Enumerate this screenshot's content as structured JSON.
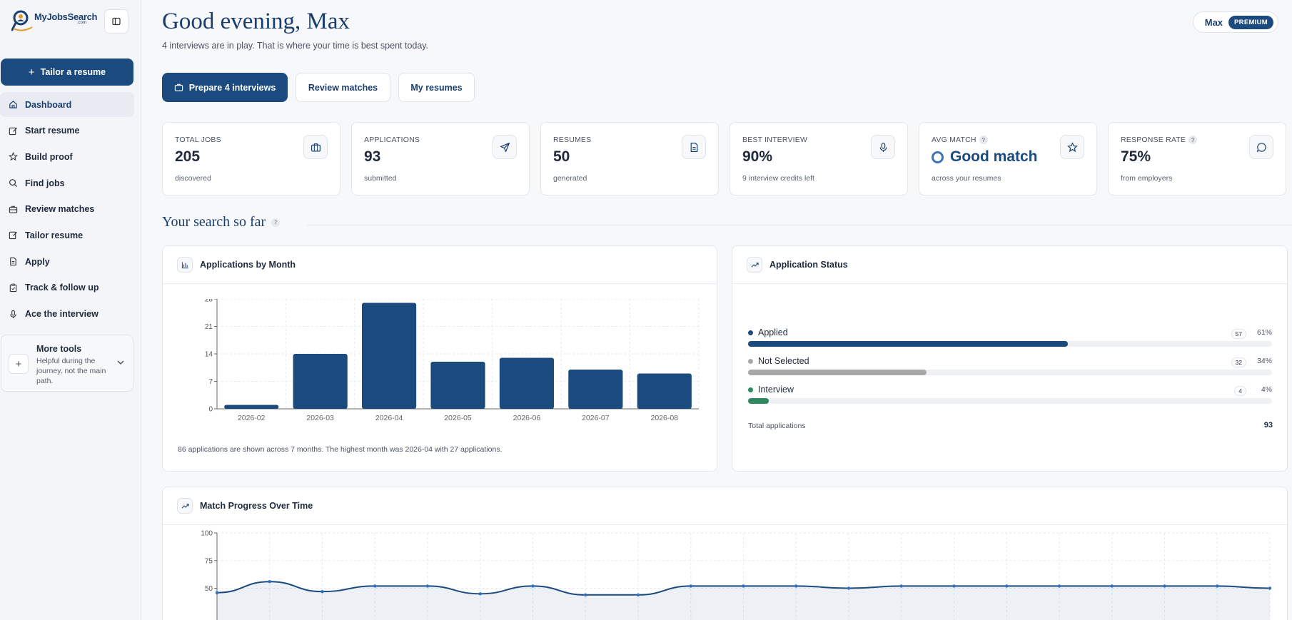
{
  "brand": {
    "name": "MyJobsSearch",
    "suffix": ".com"
  },
  "sidebar": {
    "tailor_button": "Tailor a resume",
    "items": [
      {
        "label": "Dashboard",
        "icon": "home-icon"
      },
      {
        "label": "Start resume",
        "icon": "edit-icon"
      },
      {
        "label": "Build proof",
        "icon": "star-icon"
      },
      {
        "label": "Find jobs",
        "icon": "search-icon"
      },
      {
        "label": "Review matches",
        "icon": "briefcase-icon"
      },
      {
        "label": "Tailor resume",
        "icon": "edit-icon"
      },
      {
        "label": "Apply",
        "icon": "document-icon"
      },
      {
        "label": "Track & follow up",
        "icon": "clipboard-icon"
      },
      {
        "label": "Ace the interview",
        "icon": "microphone-icon"
      }
    ],
    "more_tools": {
      "title": "More tools",
      "description": "Helpful during the journey, not the main path."
    }
  },
  "header": {
    "greeting": "Good evening, Max",
    "subline": "4 interviews are in play. That is where your time is best spent today.",
    "user": "Max",
    "badge": "PREMIUM"
  },
  "actions": {
    "primary": "Prepare 4 interviews",
    "review": "Review matches",
    "resumes": "My resumes"
  },
  "stats": [
    {
      "label": "TOTAL JOBS",
      "value": "205",
      "sub": "discovered",
      "icon": "briefcase-icon"
    },
    {
      "label": "APPLICATIONS",
      "value": "93",
      "sub": "submitted",
      "icon": "send-icon"
    },
    {
      "label": "RESUMES",
      "value": "50",
      "sub": "generated",
      "icon": "document-icon"
    },
    {
      "label": "BEST INTERVIEW",
      "value": "90%",
      "sub": "9 interview credits left",
      "icon": "microphone-icon"
    },
    {
      "label": "AVG MATCH",
      "value": "Good match",
      "sub": "across your resumes",
      "icon": "star-icon"
    },
    {
      "label": "RESPONSE RATE",
      "value": "75%",
      "sub": "from employers",
      "icon": "message-icon"
    }
  ],
  "section_title": "Your search so far",
  "charts": {
    "applications_title": "Applications by Month",
    "applications_note": "86 applications are shown across 7 months. The highest month was 2026-04 with 27 applications.",
    "status_title": "Application Status",
    "match_title": "Match Progress Over Time"
  },
  "status": {
    "rows": [
      {
        "label": "Applied",
        "count": "57",
        "pct": "61%",
        "fraction": 0.61,
        "color": "#1b4a7e"
      },
      {
        "label": "Not Selected",
        "count": "32",
        "pct": "34%",
        "fraction": 0.34,
        "color": "#a8a8a8"
      },
      {
        "label": "Interview",
        "count": "4",
        "pct": "4%",
        "fraction": 0.04,
        "color": "#2e8a5e"
      }
    ],
    "total_label": "Total applications",
    "total_value": "93"
  },
  "chart_data": [
    {
      "type": "bar",
      "title": "Applications by Month",
      "categories": [
        "2026-02",
        "2026-03",
        "2026-04",
        "2026-05",
        "2026-06",
        "2026-07",
        "2026-08"
      ],
      "values": [
        1,
        14,
        27,
        12,
        13,
        10,
        9
      ],
      "yticks": [
        0,
        7,
        14,
        21,
        28
      ],
      "ylim": [
        0,
        28
      ],
      "color": "#1b4a7e",
      "grid": true
    },
    {
      "type": "area",
      "title": "Match Progress Over Time",
      "values": [
        46,
        56,
        47,
        52,
        52,
        45,
        52,
        44,
        44,
        52,
        52,
        52,
        50,
        52,
        52,
        52,
        52,
        52,
        52,
        52,
        50
      ],
      "yticks": [
        50,
        75,
        100
      ],
      "ylim": [
        0,
        100
      ],
      "color": "#1b4a7e",
      "grid": true
    }
  ]
}
